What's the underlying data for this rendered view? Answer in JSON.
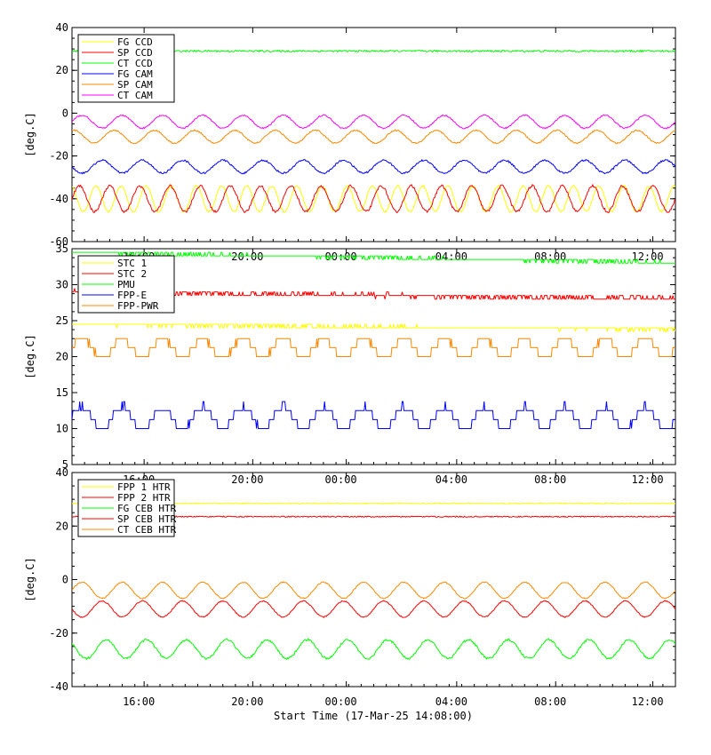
{
  "footer": {
    "xlabel": "Start Time (17-Mar-25 14:08:00)"
  },
  "x_tick_labels": [
    "16:00",
    "20:00",
    "00:00",
    "04:00",
    "08:00",
    "12:00"
  ],
  "chart_data": [
    {
      "type": "line",
      "title": "",
      "ylabel": "[deg.C]",
      "ylim": [
        -60,
        40
      ],
      "yticks": [
        -60,
        -40,
        -20,
        0,
        20,
        40
      ],
      "xlim": [
        0,
        24
      ],
      "legend_position": "top-left",
      "series": [
        {
          "name": "FG CCD",
          "color": "#ffff00",
          "base": -40,
          "amp": 6,
          "period": 1.0,
          "phase": 0.3,
          "trend": 0,
          "noise": 0.4,
          "step": 0
        },
        {
          "name": "SP CCD",
          "color": "#ff0000",
          "base": -40,
          "amp": 6,
          "period": 1.2,
          "phase": 0.0,
          "trend": 0,
          "noise": 0.6,
          "step": 0
        },
        {
          "name": "CT CCD",
          "color": "#00ff00",
          "base": 29,
          "amp": 0.0,
          "period": 1.0,
          "phase": 0.0,
          "trend": 0,
          "noise": 0.4,
          "step": 0
        },
        {
          "name": "FG CAM",
          "color": "#0000ff",
          "base": -25,
          "amp": 3,
          "period": 1.6,
          "phase": 0.5,
          "trend": 0,
          "noise": 0.4,
          "step": 0
        },
        {
          "name": "SP CAM",
          "color": "#ff8800",
          "base": -11,
          "amp": 3,
          "period": 1.6,
          "phase": 0.2,
          "trend": 0,
          "noise": 0.3,
          "step": 0
        },
        {
          "name": "CT CAM",
          "color": "#ff00ff",
          "base": -4,
          "amp": 3,
          "period": 1.6,
          "phase": 0.0,
          "trend": 0,
          "noise": 0.3,
          "step": 0
        }
      ]
    },
    {
      "type": "line",
      "title": "",
      "ylabel": "[deg.C]",
      "ylim": [
        5,
        35
      ],
      "yticks": [
        5,
        10,
        15,
        20,
        25,
        30,
        35
      ],
      "xlim": [
        0,
        24
      ],
      "legend_position": "top-left",
      "series": [
        {
          "name": "STC 1",
          "color": "#ffff00",
          "base": 24.5,
          "amp": 0.0,
          "period": 1.0,
          "phase": 0.0,
          "trend": -0.03,
          "noise": 0.2,
          "step": 0.5
        },
        {
          "name": "STC 2",
          "color": "#ff0000",
          "base": 29.0,
          "amp": 0.0,
          "period": 1.0,
          "phase": 0.0,
          "trend": -0.04,
          "noise": 0.3,
          "step": 0.5
        },
        {
          "name": "PMU",
          "color": "#00ff00",
          "base": 34.5,
          "amp": 0.0,
          "period": 1.0,
          "phase": 0.0,
          "trend": -0.06,
          "noise": 0.2,
          "step": 0.5
        },
        {
          "name": "FPP-E",
          "color": "#0000ff",
          "base": 11.5,
          "amp": 1.6,
          "period": 1.6,
          "phase": 0.0,
          "trend": 0,
          "noise": 0.2,
          "step": 1.25
        },
        {
          "name": "FPP-PWR",
          "color": "#ff8800",
          "base": 21.2,
          "amp": 1.3,
          "period": 1.6,
          "phase": 0.0,
          "trend": 0,
          "noise": 0.2,
          "step": 1.25
        }
      ]
    },
    {
      "type": "line",
      "title": "",
      "ylabel": "[deg.C]",
      "ylim": [
        -40,
        40
      ],
      "yticks": [
        -40,
        -20,
        0,
        20,
        40
      ],
      "xlim": [
        0,
        24
      ],
      "legend_position": "top-left",
      "series": [
        {
          "name": "FPP 1 HTR",
          "color": "#ffff00",
          "base": 28.5,
          "amp": 0.0,
          "period": 1.0,
          "phase": 0.0,
          "trend": 0,
          "noise": 0.2,
          "step": 0
        },
        {
          "name": "FPP 2 HTR",
          "color": "#ff0000",
          "base": 23.5,
          "amp": 0.0,
          "period": 1.0,
          "phase": 0.0,
          "trend": 0,
          "noise": 0.2,
          "step": 0
        },
        {
          "name": "FG CEB HTR",
          "color": "#00ff00",
          "base": -26,
          "amp": 3.5,
          "period": 1.6,
          "phase": 0.4,
          "trend": 0,
          "noise": 0.4,
          "step": 0
        },
        {
          "name": "SP CEB HTR",
          "color": "#ff0000",
          "base": -11,
          "amp": 3,
          "period": 1.6,
          "phase": 0.5,
          "trend": 0,
          "noise": 0.2,
          "step": 0
        },
        {
          "name": "CT CEB HTR",
          "color": "#ff8800",
          "base": -4,
          "amp": 3,
          "period": 1.6,
          "phase": 0.0,
          "trend": 0,
          "noise": 0.2,
          "step": 0
        }
      ]
    }
  ]
}
